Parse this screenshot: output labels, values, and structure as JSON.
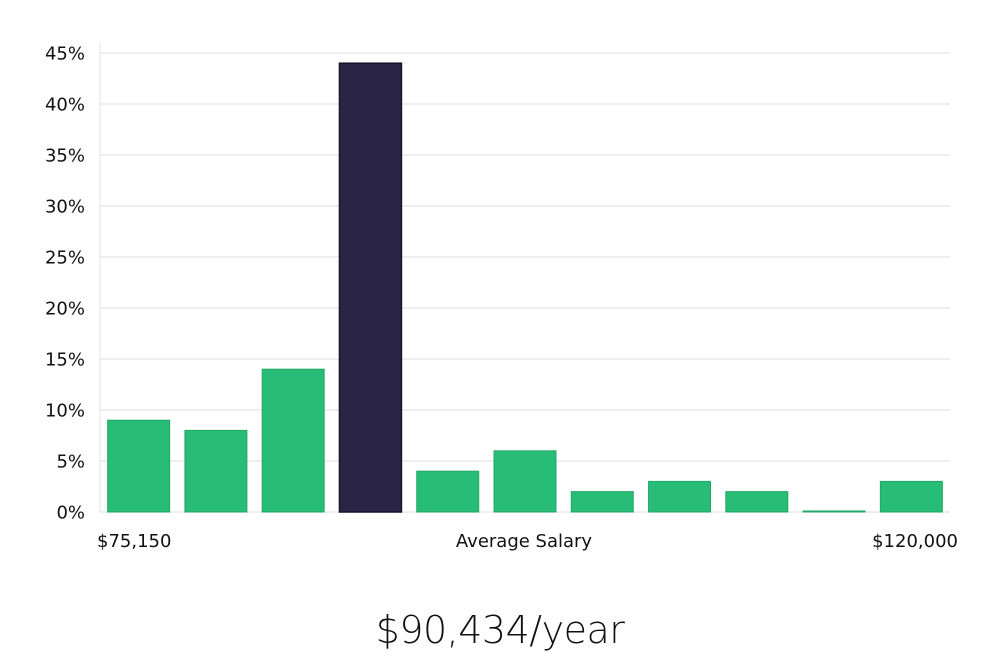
{
  "chart_data": {
    "type": "bar",
    "title": "",
    "xlabel": "Average Salary",
    "ylabel": "",
    "x_range_labels": {
      "min": "$75,150",
      "max": "$120,000"
    },
    "ylim": [
      0,
      45
    ],
    "y_ticks": [
      "0%",
      "5%",
      "10%",
      "15%",
      "20%",
      "25%",
      "30%",
      "35%",
      "40%",
      "45%"
    ],
    "values": [
      9,
      8,
      14,
      44,
      4,
      6,
      2,
      3,
      2,
      0.1,
      3
    ],
    "highlight_index": 3,
    "grid": true,
    "colors": {
      "bar": "#28bd77",
      "highlight": "#2a2546",
      "grid": "#dcdcdc"
    }
  },
  "summary": {
    "average_salary": "$90,434/year"
  }
}
